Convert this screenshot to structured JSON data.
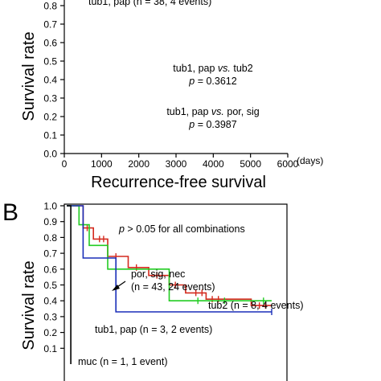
{
  "panel_a": {
    "legend_top": "tub1, pap (n = 38, 4 events)",
    "ylabel": "Survival rate",
    "xlabel": "Recurrence-free survival",
    "x_unit": "(days)",
    "y_ticks": [
      "0.0",
      "0.1",
      "0.2",
      "0.3",
      "0.4",
      "0.5",
      "0.6",
      "0.7",
      "0.8"
    ],
    "x_ticks": [
      "0",
      "1000",
      "2000",
      "3000",
      "4000",
      "5000",
      "6000"
    ],
    "comparisons": [
      {
        "label": "tub1, pap vs. tub2",
        "pre": "tub1, pap ",
        "vs": "vs.",
        "post": " tub2",
        "p_label": "p",
        "p_value": " = 0.3612"
      },
      {
        "label": "tub1, pap vs. por, sig",
        "pre": "tub1, pap ",
        "vs": "vs.",
        "post": " por, sig",
        "p_label": "p",
        "p_value": " = 0.3987"
      }
    ]
  },
  "panel_b": {
    "letter": "B",
    "ylabel": "Survival rate",
    "y_ticks": [
      "1.0",
      "0.9",
      "0.8",
      "0.7",
      "0.6",
      "0.5",
      "0.4",
      "0.3",
      "0.2",
      "0.1"
    ],
    "note_p": "p",
    "note_rest": " > 0.05 for all combinations",
    "labels": {
      "por_line1": "por, sig, nec",
      "por_line2": "(n = 43, 24 events)",
      "tub2": "tub2 (n = 8, 4 events)",
      "tub1": "tub1, pap (n = 3, 2 events)",
      "muc": "muc (n = 1, 1 event)"
    }
  },
  "colors": {
    "por_sig_nec": "#d42a1e",
    "tub2": "#22cc22",
    "tub1_pap": "#1a2fb8",
    "muc": "#000000",
    "axis": "#000000"
  },
  "chart_data": [
    {
      "type": "line",
      "panel": "A",
      "xlabel": "Recurrence-free survival",
      "ylabel": "Survival rate",
      "xlim": [
        0,
        6000
      ],
      "ylim": [
        0.0,
        0.8
      ],
      "x_unit": "(days)",
      "series": []
    },
    {
      "type": "line",
      "panel": "B",
      "ylabel": "Survival rate",
      "ylim": [
        0.1,
        1.0
      ],
      "series": [
        {
          "name": "por, sig, nec (n = 43, 24 events)",
          "color": "#d42a1e",
          "x": [
            0,
            0.08,
            0.08,
            0.13,
            0.13,
            0.2,
            0.2,
            0.3,
            0.3,
            0.4,
            0.4,
            0.5,
            0.5,
            0.58,
            0.58,
            0.68,
            0.68,
            0.9,
            0.9,
            1.0,
            1.0
          ],
          "y": [
            1.0,
            1.0,
            0.86,
            0.86,
            0.79,
            0.79,
            0.68,
            0.68,
            0.61,
            0.61,
            0.56,
            0.56,
            0.5,
            0.5,
            0.45,
            0.45,
            0.41,
            0.41,
            0.37,
            0.37,
            0.37
          ],
          "censor_x": [
            0.1,
            0.16,
            0.18,
            0.24,
            0.34,
            0.44,
            0.53,
            0.63,
            0.66,
            0.71,
            0.74,
            0.94,
            0.97
          ]
        },
        {
          "name": "tub2 (n = 8, 4 events)",
          "color": "#22cc22",
          "x": [
            0,
            0.06,
            0.06,
            0.11,
            0.11,
            0.2,
            0.2,
            0.5,
            0.5,
            1.0
          ],
          "y": [
            1.0,
            1.0,
            0.88,
            0.88,
            0.75,
            0.75,
            0.6,
            0.6,
            0.4,
            0.4
          ],
          "censor_x": [
            0.64,
            0.77,
            0.96
          ]
        },
        {
          "name": "tub1, pap (n = 3, 2 events)",
          "color": "#1a2fb8",
          "x": [
            0,
            0.08,
            0.08,
            0.24,
            0.24,
            1.0
          ],
          "y": [
            1.0,
            1.0,
            0.67,
            0.67,
            0.33,
            0.33
          ],
          "censor_x": [
            1.0
          ]
        },
        {
          "name": "muc (n = 1, 1 event)",
          "color": "#000000",
          "x": [
            0,
            0.02,
            0.02
          ],
          "y": [
            1.0,
            1.0,
            0.0
          ],
          "censor_x": []
        }
      ]
    }
  ]
}
